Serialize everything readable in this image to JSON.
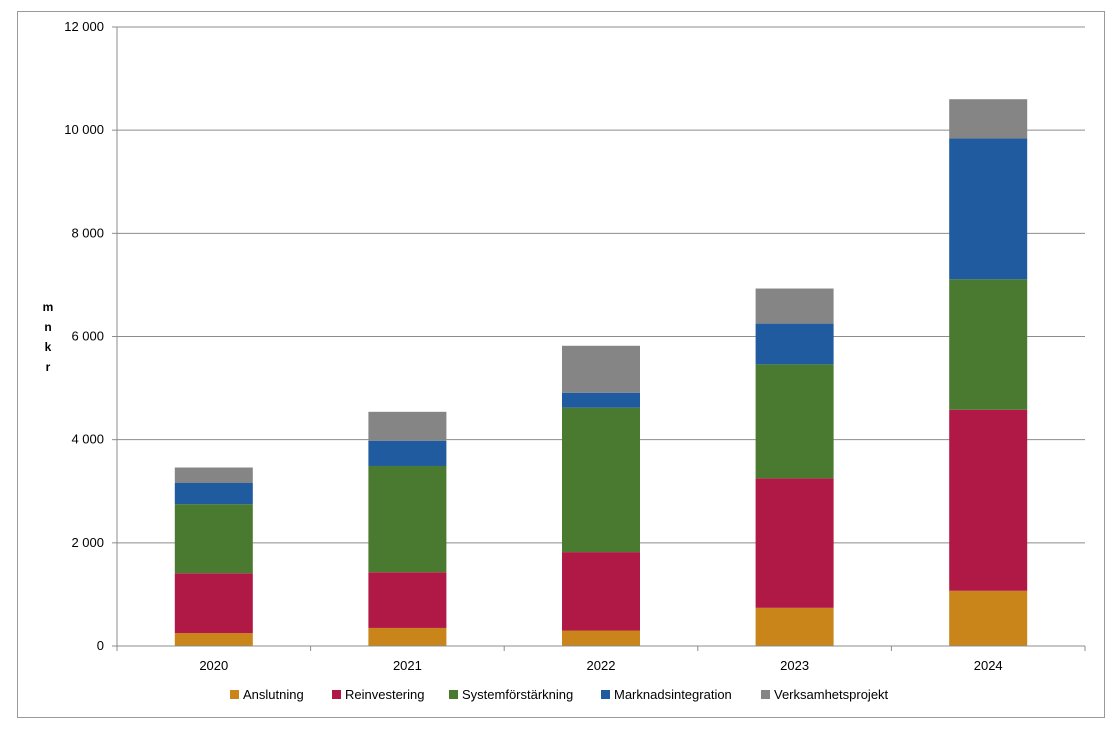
{
  "chart_data": {
    "type": "bar",
    "stacked": true,
    "categories": [
      "2020",
      "2021",
      "2022",
      "2023",
      "2024"
    ],
    "series": [
      {
        "name": "Anslutning",
        "color": "#c9841a",
        "values": [
          250,
          350,
          300,
          740,
          1070
        ]
      },
      {
        "name": "Reinvestering",
        "color": "#b01845",
        "values": [
          1160,
          1080,
          1520,
          2510,
          3510
        ]
      },
      {
        "name": "Systemförstärkning",
        "color": "#4a7a30",
        "values": [
          1340,
          2060,
          2800,
          2210,
          2530
        ]
      },
      {
        "name": "Marknadsintegration",
        "color": "#1f5b9e",
        "values": [
          410,
          490,
          290,
          790,
          2730
        ]
      },
      {
        "name": "Verksamhetsprojekt",
        "color": "#858585",
        "values": [
          300,
          560,
          910,
          680,
          760
        ]
      }
    ],
    "ylabel_letters": [
      "m",
      "n",
      "k",
      "r"
    ],
    "ylim": [
      0,
      12000
    ],
    "yticks": [
      0,
      2000,
      4000,
      6000,
      8000,
      10000,
      12000
    ],
    "ytick_labels": [
      "0",
      "2 000",
      "4 000",
      "6 000",
      "8 000",
      "10 000",
      "12 000"
    ],
    "grid": true,
    "legend_position": "bottom"
  }
}
